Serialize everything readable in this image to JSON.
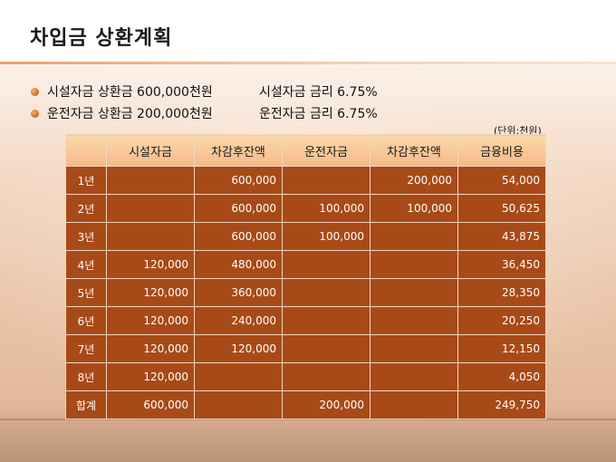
{
  "title": "차입금 상환계획",
  "bullets": [
    {
      "left": "시설자금 상환금 600,000천원",
      "right": "시설자금 금리 6.75%"
    },
    {
      "left": "운전자금 상환금 200,000천원",
      "right": "운전자금 금리 6.75%"
    }
  ],
  "unit_note": "(단위:천원)",
  "table": {
    "headers": [
      "",
      "시설자금",
      "차감후잔액",
      "운전자금",
      "차감후잔액",
      "금융비용"
    ],
    "rows": [
      [
        "1년",
        "",
        "600,000",
        "",
        "200,000",
        "54,000"
      ],
      [
        "2년",
        "",
        "600,000",
        "100,000",
        "100,000",
        "50,625"
      ],
      [
        "3년",
        "",
        "600,000",
        "100,000",
        "",
        "43,875"
      ],
      [
        "4년",
        "120,000",
        "480,000",
        "",
        "",
        "36,450"
      ],
      [
        "5년",
        "120,000",
        "360,000",
        "",
        "",
        "28,350"
      ],
      [
        "6년",
        "120,000",
        "240,000",
        "",
        "",
        "20,250"
      ],
      [
        "7년",
        "120,000",
        "120,000",
        "",
        "",
        "12,150"
      ],
      [
        "8년",
        "120,000",
        "",
        "",
        "",
        "4,050"
      ],
      [
        "합계",
        "600,000",
        "",
        "200,000",
        "",
        "249,750"
      ]
    ]
  },
  "colors": {
    "cell": "#a84a17",
    "header": "#f7c797",
    "bullet": "#d0661d"
  }
}
